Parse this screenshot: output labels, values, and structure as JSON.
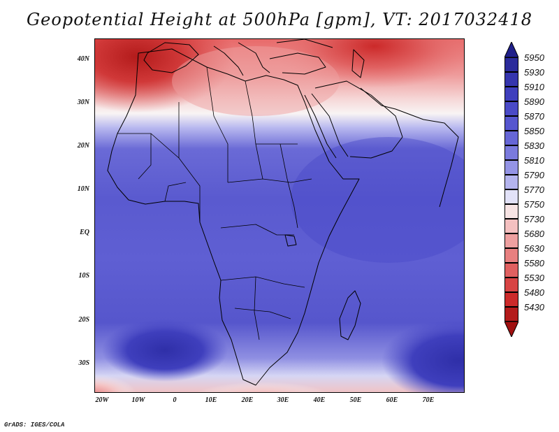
{
  "title": "Geopotential Height at 500hPa [gpm], VT: 2017032418",
  "credit": "GrADS: IGES/COLA",
  "axes": {
    "lat_labels": [
      "40N",
      "30N",
      "20N",
      "10N",
      "EQ",
      "10S",
      "20S",
      "30S"
    ],
    "lat_values": [
      40,
      30,
      20,
      10,
      0,
      -10,
      -20,
      -30
    ],
    "lon_labels": [
      "20W",
      "10W",
      "0",
      "10E",
      "20E",
      "30E",
      "40E",
      "50E",
      "60E",
      "70E"
    ],
    "lon_values": [
      -20,
      -10,
      0,
      10,
      20,
      30,
      40,
      50,
      60,
      70
    ],
    "lon_range": [
      -22,
      80
    ],
    "lat_range": [
      -36,
      45
    ]
  },
  "colorbar": {
    "levels": [
      "5950",
      "5930",
      "5910",
      "5890",
      "5870",
      "5850",
      "5830",
      "5810",
      "5790",
      "5770",
      "5750",
      "5730",
      "5680",
      "5630",
      "5580",
      "5530",
      "5480",
      "5430"
    ],
    "colors": [
      "#2b2b9b",
      "#3535ae",
      "#3f3fbd",
      "#4a4ac7",
      "#5656cf",
      "#6666d6",
      "#7a7add",
      "#9494e5",
      "#b4b4ee",
      "#e2e2f8",
      "#f7e4e4",
      "#f4c0c0",
      "#eea0a0",
      "#e88080",
      "#e06060",
      "#d84444",
      "#cc2a2a",
      "#b31b1b"
    ],
    "top_arrow_color": "#1f1f8a",
    "bottom_arrow_color": "#a01010"
  },
  "field_colors": {
    "deep_red": "#b31b1b",
    "red": "#d84444",
    "pink": "#f2b4b4",
    "white": "#f8f2f2",
    "light_blue": "#b4b4ee",
    "blue": "#6060d2",
    "deep_blue": "#3b3bb8"
  }
}
